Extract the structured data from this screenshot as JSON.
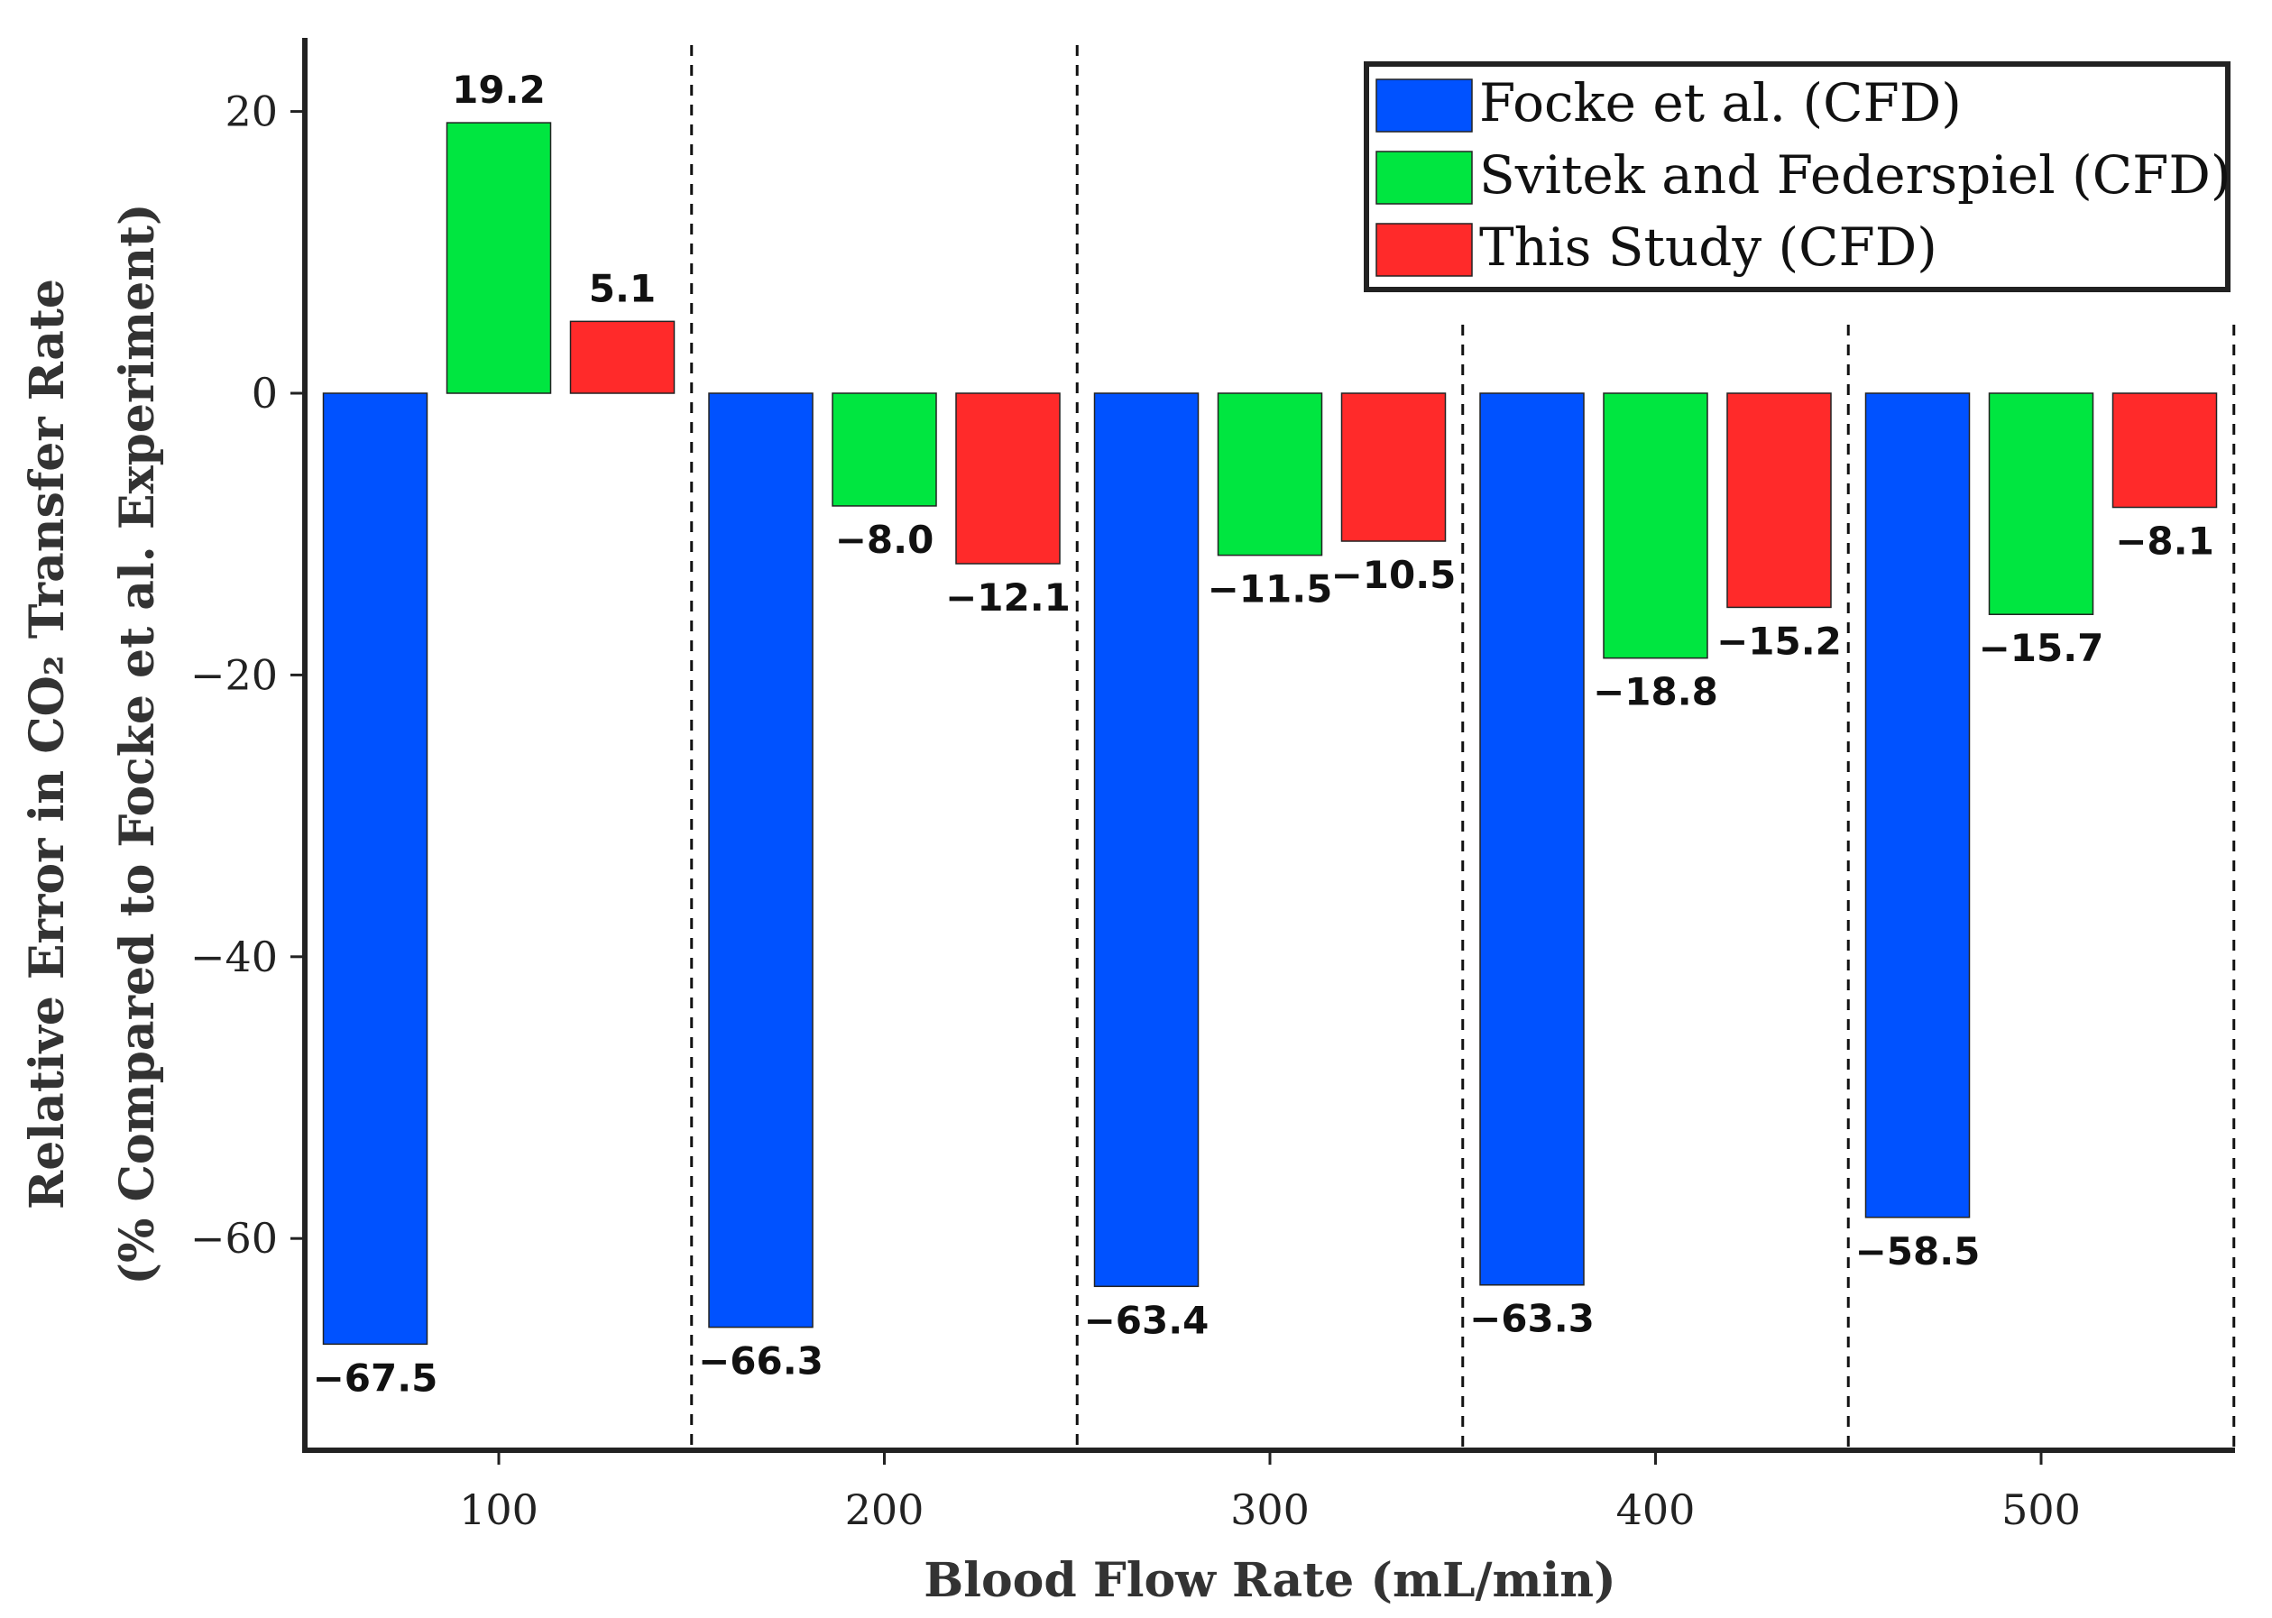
{
  "chart_data": {
    "type": "bar",
    "xlabel": "Blood Flow Rate (mL/min)",
    "ylabel_line1": "Relative Error in CO₂ Transfer Rate",
    "ylabel_line2": "(% Compared to Focke et al. Experiment)",
    "categories": [
      "100",
      "200",
      "300",
      "400",
      "500"
    ],
    "ylim": [
      -75,
      25
    ],
    "yticks": [
      20,
      0,
      -20,
      -40,
      -60
    ],
    "ytick_labels": [
      "20",
      "0",
      "−20",
      "−40",
      "−60"
    ],
    "series": [
      {
        "name": "Focke et al. (CFD)",
        "color": "#0052ff",
        "values": [
          -67.5,
          -66.3,
          -63.4,
          -63.3,
          -58.5
        ],
        "labels": [
          "−67.5",
          "−66.3",
          "−63.4",
          "−63.3",
          "−58.5"
        ]
      },
      {
        "name": "Svitek and Federspiel (CFD)",
        "color": "#00e640",
        "values": [
          19.2,
          -8.0,
          -11.5,
          -18.8,
          -15.7
        ],
        "labels": [
          "19.2",
          "−8.0",
          "−11.5",
          "−18.8",
          "−15.7"
        ]
      },
      {
        "name": "This Study (CFD)",
        "color": "#ff2a2a",
        "values": [
          5.1,
          -12.1,
          -10.5,
          -15.2,
          -8.1
        ],
        "labels": [
          "5.1",
          "−12.1",
          "−10.5",
          "−15.2",
          "−8.1"
        ]
      }
    ],
    "grid": false,
    "group_separators": "dashed vertical lines",
    "legend_position": "top-right"
  }
}
